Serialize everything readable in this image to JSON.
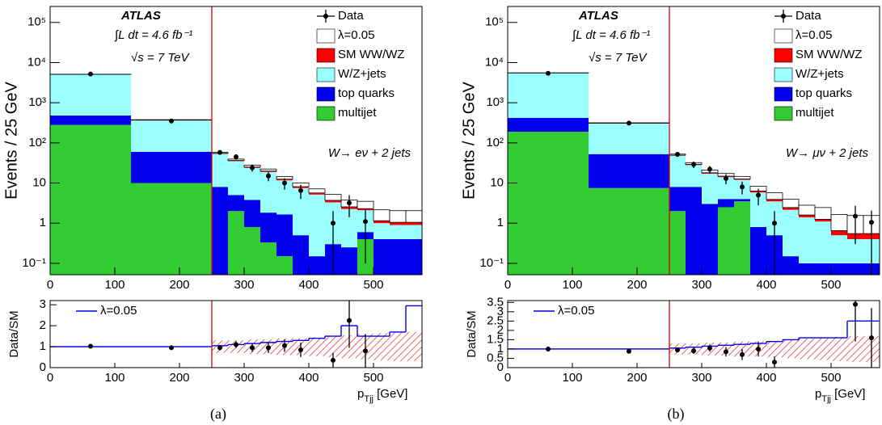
{
  "chart_data": [
    {
      "type": "histogram",
      "log_y": true,
      "ylabel": "Events / 25 GeV",
      "xlim": [
        0,
        575
      ],
      "ylim": [
        0.052,
        250000
      ],
      "xticks": [
        0,
        100,
        200,
        300,
        400,
        500
      ],
      "yticks": [
        {
          "value": 0.1,
          "label": "10⁻¹"
        },
        1,
        10,
        {
          "value": 100,
          "label": "10²"
        },
        {
          "value": 1000,
          "label": "10³"
        },
        {
          "value": 10000,
          "label": "10⁴"
        },
        {
          "value": 100000,
          "label": "10⁵"
        }
      ],
      "bins": [
        0,
        125,
        250,
        275,
        300,
        325,
        350,
        375,
        400,
        425,
        450,
        475,
        500,
        525,
        550,
        575
      ],
      "series": [
        {
          "name": "multijet",
          "color": "#33cc33",
          "values": [
            280,
            10,
            null,
            2,
            0.8,
            0.33,
            0.15,
            null,
            null,
            null,
            null,
            0.4,
            null,
            null,
            null
          ]
        },
        {
          "name": "top quarks",
          "color": "#0000ee",
          "values": [
            200,
            50,
            8,
            3,
            3,
            1.5,
            1.5,
            0.5,
            0.15,
            0.3,
            0.25,
            0.2,
            0.4,
            0.4,
            0.4
          ]
        },
        {
          "name": "W/Z+jets",
          "color": "#99ffff",
          "values": [
            4500,
            300,
            45,
            30,
            20,
            17,
            10,
            7,
            5,
            3,
            2,
            1.5,
            0.6,
            0.5,
            0.5
          ]
        },
        {
          "name": "SM WW/WZ",
          "color": "#ff0000",
          "values": [
            100,
            10,
            2,
            1.5,
            1.2,
            1,
            0.8,
            0.6,
            0.5,
            0.4,
            0.3,
            0.2,
            0.15,
            0.15,
            0.15
          ]
        },
        {
          "name": "λ=0.05",
          "color": "#ffffff",
          "values": [
            50,
            8,
            3,
            3,
            3,
            2.5,
            2,
            2,
            1.5,
            1.5,
            1.2,
            1.2,
            1,
            1,
            1
          ]
        }
      ],
      "data": {
        "name": "Data",
        "values": [
          5200,
          350,
          58,
          45,
          24,
          15,
          10,
          6.5,
          null,
          1,
          3.2,
          1.1,
          null,
          null,
          null
        ],
        "errors": [
          72,
          19,
          7.6,
          6.7,
          4.9,
          3.9,
          3.2,
          2.5,
          null,
          1,
          1.8,
          1,
          null,
          null,
          null
        ]
      },
      "cut": 250,
      "cut_color": "#dd0000",
      "annotations": {
        "experiment": "ATLAS",
        "luminosity": "∫L dt = 4.6 fb⁻¹",
        "energy": "√s = 7 TeV",
        "channel": "W→ eν + 2 jets"
      },
      "caption": "(a)"
    },
    {
      "type": "ratio",
      "ylabel": "Data/SM",
      "xlabel": {
        "text": "p",
        "sub": "Tjj",
        "unit": " [GeV]"
      },
      "xlim": [
        0,
        575
      ],
      "ylim": [
        0,
        3.2
      ],
      "xticks": [
        0,
        100,
        200,
        300,
        400,
        500
      ],
      "yticks": [
        0,
        1,
        2,
        3
      ],
      "bins": [
        0,
        125,
        250,
        275,
        300,
        325,
        350,
        375,
        400,
        425,
        450,
        475,
        500,
        525,
        550,
        575
      ],
      "reference": 1,
      "line": {
        "name": "λ=0.05",
        "color": "#0000ee",
        "values": [
          1,
          1,
          1.05,
          1.1,
          1.15,
          1.2,
          1.25,
          1.3,
          1.4,
          1.5,
          2.0,
          1.5,
          1.5,
          1.7,
          2.95
        ]
      },
      "data": {
        "values": [
          1.02,
          0.95,
          0.95,
          1.1,
          0.95,
          0.95,
          1.05,
          0.85,
          null,
          0.35,
          2.25,
          0.8,
          null,
          null,
          null
        ],
        "errors": [
          0.02,
          0.05,
          0.13,
          0.16,
          0.2,
          0.25,
          0.3,
          0.35,
          null,
          0.35,
          1.3,
          0.8,
          null,
          null,
          null
        ]
      },
      "uncertainty": [
        null,
        null,
        0.3,
        0.3,
        0.35,
        0.35,
        0.4,
        0.4,
        0.45,
        0.5,
        0.55,
        0.6,
        0.65,
        0.7,
        0.7
      ],
      "uncertainty_color": "#dd2222",
      "cut": 250,
      "cut_color": "#dd0000"
    },
    {
      "type": "histogram",
      "log_y": true,
      "ylabel": "Events / 25 GeV",
      "xlim": [
        0,
        575
      ],
      "ylim": [
        0.052,
        250000
      ],
      "xticks": [
        0,
        100,
        200,
        300,
        400,
        500
      ],
      "yticks": [
        {
          "value": 0.1,
          "label": "10⁻¹"
        },
        1,
        10,
        {
          "value": 100,
          "label": "10²"
        },
        {
          "value": 1000,
          "label": "10³"
        },
        {
          "value": 10000,
          "label": "10⁴"
        },
        {
          "value": 100000,
          "label": "10⁵"
        }
      ],
      "bins": [
        0,
        125,
        250,
        275,
        300,
        325,
        350,
        375,
        400,
        425,
        450,
        475,
        500,
        525,
        550,
        575
      ],
      "series": [
        {
          "name": "multijet",
          "color": "#33cc33",
          "values": [
            190,
            7.5,
            2,
            null,
            null,
            2.5,
            3.5,
            null,
            null,
            null,
            null,
            null,
            null,
            null,
            null
          ]
        },
        {
          "name": "top quarks",
          "color": "#0000ee",
          "values": [
            230,
            45,
            6,
            8,
            3,
            1.5,
            0.5,
            0.8,
            0.5,
            0.15,
            0.1,
            0.1,
            0.1,
            0.1,
            0.1
          ]
        },
        {
          "name": "W/Z+jets",
          "color": "#99ffff",
          "values": [
            5000,
            250,
            40,
            20,
            14,
            10,
            8,
            5,
            3,
            2,
            1.3,
            1,
            0.4,
            0.3,
            0.3
          ]
        },
        {
          "name": "SM WW/WZ",
          "color": "#ff0000",
          "values": [
            100,
            8,
            1.5,
            1.2,
            1,
            0.8,
            0.6,
            0.5,
            0.4,
            0.3,
            0.2,
            0.15,
            0.15,
            0.15,
            0.15
          ]
        },
        {
          "name": "λ=0.05",
          "color": "#ffffff",
          "values": [
            50,
            6,
            3,
            3,
            3,
            2.5,
            2,
            2,
            1.8,
            1.5,
            1.2,
            1.2,
            1,
            1,
            1
          ]
        }
      ],
      "data": {
        "name": "Data",
        "values": [
          5400,
          310,
          52,
          29,
          22,
          13,
          8,
          5,
          1,
          null,
          null,
          null,
          null,
          1.5,
          1.05
        ],
        "errors": [
          73,
          18,
          7.2,
          5.4,
          4.7,
          3.6,
          2.8,
          2.2,
          1,
          null,
          null,
          null,
          null,
          1.2,
          1
        ]
      },
      "cut": 250,
      "cut_color": "#dd0000",
      "annotations": {
        "experiment": "ATLAS",
        "luminosity": "∫L dt = 4.6 fb⁻¹",
        "energy": "√s = 7 TeV",
        "channel": "W→ μν + 2 jets"
      },
      "caption": "(b)"
    },
    {
      "type": "ratio",
      "ylabel": "Data/SM",
      "xlabel": {
        "text": "p",
        "sub": "Tjj",
        "unit": " [GeV]"
      },
      "xlim": [
        0,
        575
      ],
      "ylim": [
        0,
        3.6
      ],
      "xticks": [
        0,
        100,
        200,
        300,
        400,
        500
      ],
      "yticks": [
        0,
        0.5,
        1,
        1.5,
        2,
        2.5,
        3,
        3.5
      ],
      "bins": [
        0,
        125,
        250,
        275,
        300,
        325,
        350,
        375,
        400,
        425,
        450,
        475,
        500,
        525,
        550,
        575
      ],
      "reference": 1,
      "line": {
        "name": "λ=0.05",
        "color": "#0000ee",
        "values": [
          1,
          1,
          1.05,
          1.1,
          1.15,
          1.2,
          1.25,
          1.3,
          1.4,
          1.5,
          1.6,
          1.6,
          1.6,
          2.5,
          2.5
        ]
      },
      "data": {
        "values": [
          1,
          0.88,
          0.95,
          0.9,
          1.05,
          0.85,
          0.7,
          1.0,
          0.3,
          null,
          null,
          null,
          null,
          3.4,
          1.6
        ],
        "errors": [
          0.02,
          0.05,
          0.13,
          0.16,
          0.2,
          0.25,
          0.3,
          0.4,
          0.3,
          null,
          null,
          null,
          null,
          2,
          1.6
        ]
      },
      "uncertainty": [
        null,
        null,
        0.3,
        0.3,
        0.35,
        0.35,
        0.4,
        0.4,
        0.45,
        0.5,
        0.55,
        0.6,
        0.65,
        0.7,
        0.7
      ],
      "uncertainty_color": "#dd2222",
      "cut": 250,
      "cut_color": "#dd0000"
    }
  ]
}
